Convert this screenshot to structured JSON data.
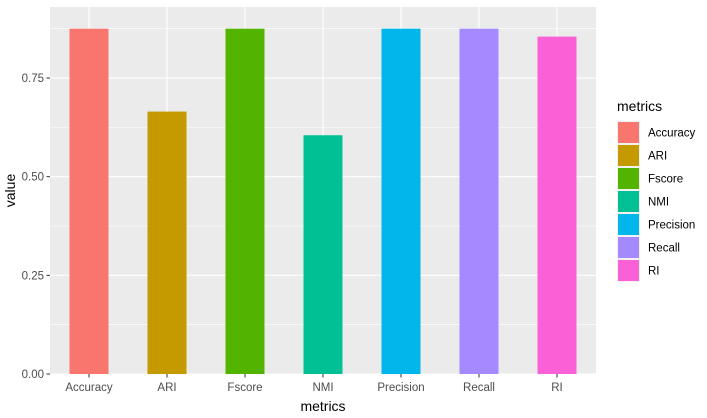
{
  "chart_data": {
    "type": "bar",
    "categories": [
      "Accuracy",
      "ARI",
      "Fscore",
      "NMI",
      "Precision",
      "Recall",
      "RI"
    ],
    "values": [
      0.875,
      0.665,
      0.875,
      0.605,
      0.875,
      0.875,
      0.855
    ],
    "colors": [
      "#F8766D",
      "#C49A00",
      "#53B400",
      "#00C094",
      "#00B6EB",
      "#A58AFF",
      "#FB61D7"
    ],
    "xlabel": "metrics",
    "ylabel": "value",
    "ylim": [
      0,
      0.93
    ],
    "yticks": [
      0,
      0.25,
      0.5,
      0.75
    ],
    "ytick_labels": [
      "0.00",
      "0.25",
      "0.50",
      "0.75"
    ],
    "grid": true,
    "panel_background": "#EBEBEB",
    "legend": {
      "title": "metrics",
      "position": "right",
      "entries": [
        "Accuracy",
        "ARI",
        "Fscore",
        "NMI",
        "Precision",
        "Recall",
        "RI"
      ]
    }
  }
}
